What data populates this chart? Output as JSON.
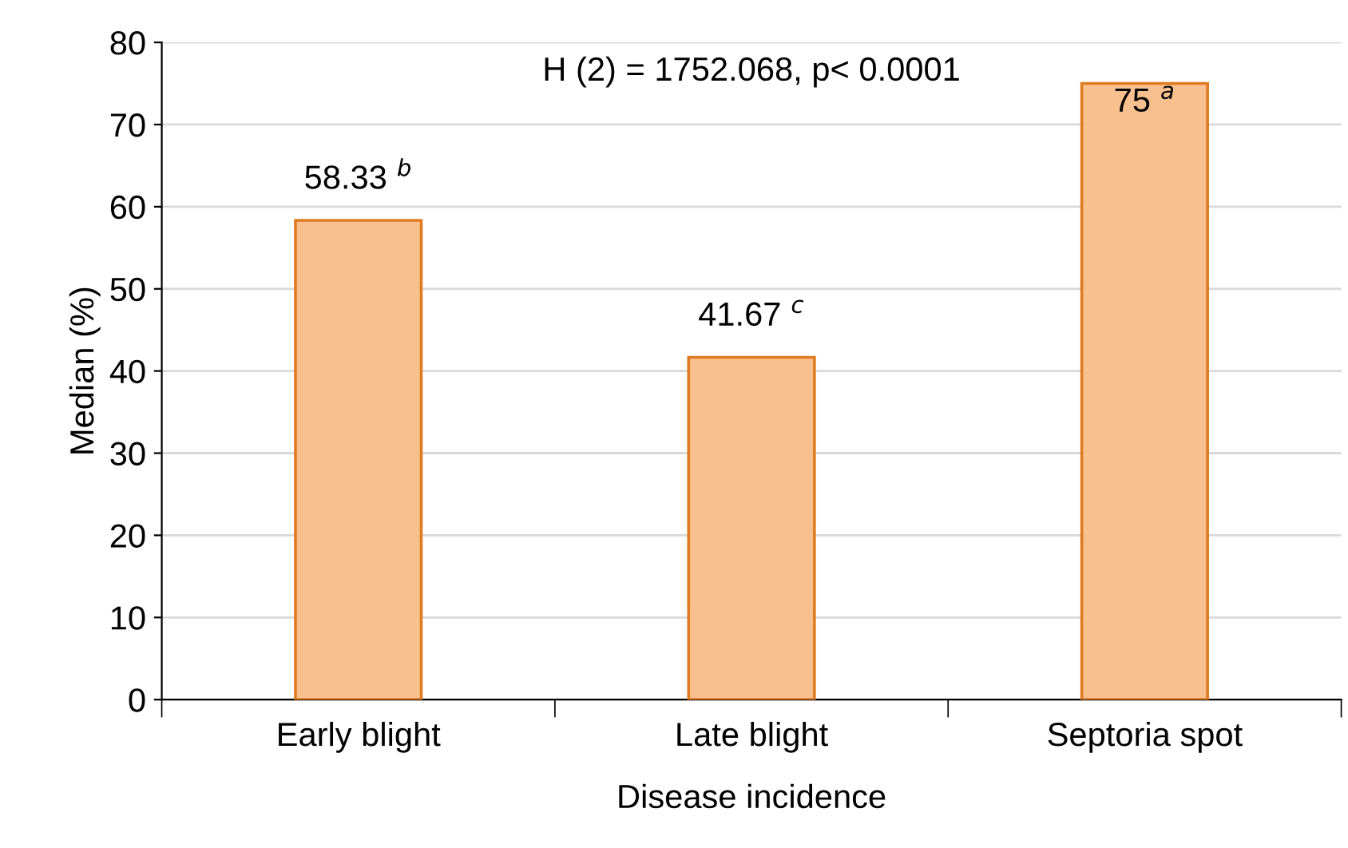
{
  "chart_data": {
    "type": "bar",
    "xlabel": "Disease incidence",
    "ylabel": "Median (%)",
    "categories": [
      "Early blight",
      "Late blight",
      "Septoria spot"
    ],
    "values": [
      58.33,
      41.67,
      75
    ],
    "value_labels": [
      "58.33 $^{b}$",
      "41.67 $^{c}$",
      "75 $^{a}$"
    ],
    "color": "#f8c08f",
    "ylim": [
      0,
      80
    ],
    "yticks": [
      0,
      10,
      20,
      30,
      40,
      50,
      60,
      70,
      80
    ],
    "grid": "y",
    "annotations": [
      "H (2) = 1752.068, p< 0.0001"
    ]
  }
}
